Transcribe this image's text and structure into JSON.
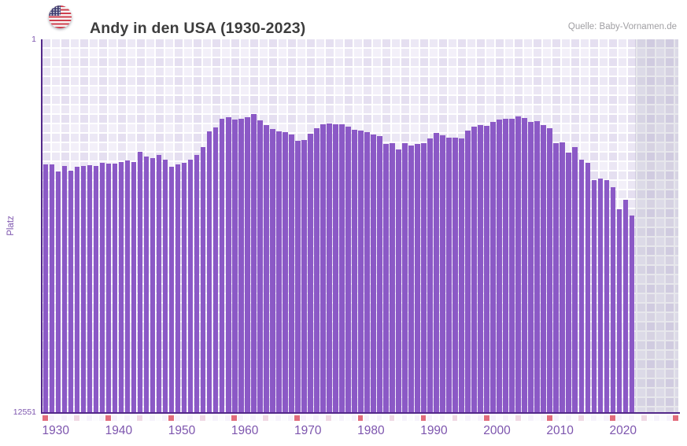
{
  "header": {
    "title": "Andy in den USA (1930-2023)",
    "source_label": "Quelle: Baby-Vornamen.de",
    "flag_icon": "us-flag-icon"
  },
  "chart_data": {
    "type": "bar",
    "title": "Andy in den USA (1930-2023)",
    "xlabel": "",
    "ylabel": "Platz",
    "y_axis": {
      "top_label": "1",
      "bottom_label": "12551",
      "min": 1,
      "max": 12551,
      "inverted": true,
      "note": "rank 1 at top, bars grow upward from bottom; values estimated from linear axis reading"
    },
    "x_ticks": [
      "1930",
      "1940",
      "1950",
      "1960",
      "1970",
      "1980",
      "1990",
      "2000",
      "2010",
      "2020"
    ],
    "start_year": 1930,
    "end_year": 2023,
    "grid": true,
    "legend": false,
    "values": [
      4210,
      4210,
      4450,
      4260,
      4420,
      4290,
      4260,
      4240,
      4260,
      4160,
      4180,
      4180,
      4130,
      4080,
      4110,
      3790,
      3950,
      4000,
      3890,
      4030,
      4290,
      4210,
      4160,
      4050,
      3890,
      3630,
      3100,
      2970,
      2680,
      2620,
      2700,
      2680,
      2620,
      2520,
      2730,
      2890,
      3020,
      3100,
      3130,
      3210,
      3420,
      3390,
      3180,
      2990,
      2860,
      2830,
      2860,
      2860,
      2940,
      3040,
      3070,
      3130,
      3200,
      3260,
      3520,
      3500,
      3710,
      3500,
      3570,
      3520,
      3500,
      3340,
      3150,
      3230,
      3310,
      3310,
      3340,
      3070,
      2940,
      2890,
      2910,
      2780,
      2700,
      2680,
      2680,
      2600,
      2650,
      2780,
      2760,
      2890,
      2990,
      3490,
      3460,
      3810,
      3630,
      4050,
      4160,
      4740,
      4690,
      4740,
      4980,
      5720,
      5380,
      5910
    ]
  },
  "decade_strip": {
    "start_year": 1930,
    "end_year": 2030,
    "decade_interval": 10,
    "half_decade_interval": 5
  },
  "colors": {
    "bar": "#8b59c6",
    "axis_line": "#53288a",
    "tick_text": "#7d55ae",
    "title_text": "#3d3d3d",
    "source_text": "#a09fa3",
    "decade_cell": "#e26c7c",
    "half_decade_cell": "#f0d8e4",
    "strip_cell_a": "#f6f2fb",
    "strip_cell_b": "#fcfbfe",
    "plot_background": "#f3f0f9",
    "future_background": "#e2dfeb"
  }
}
